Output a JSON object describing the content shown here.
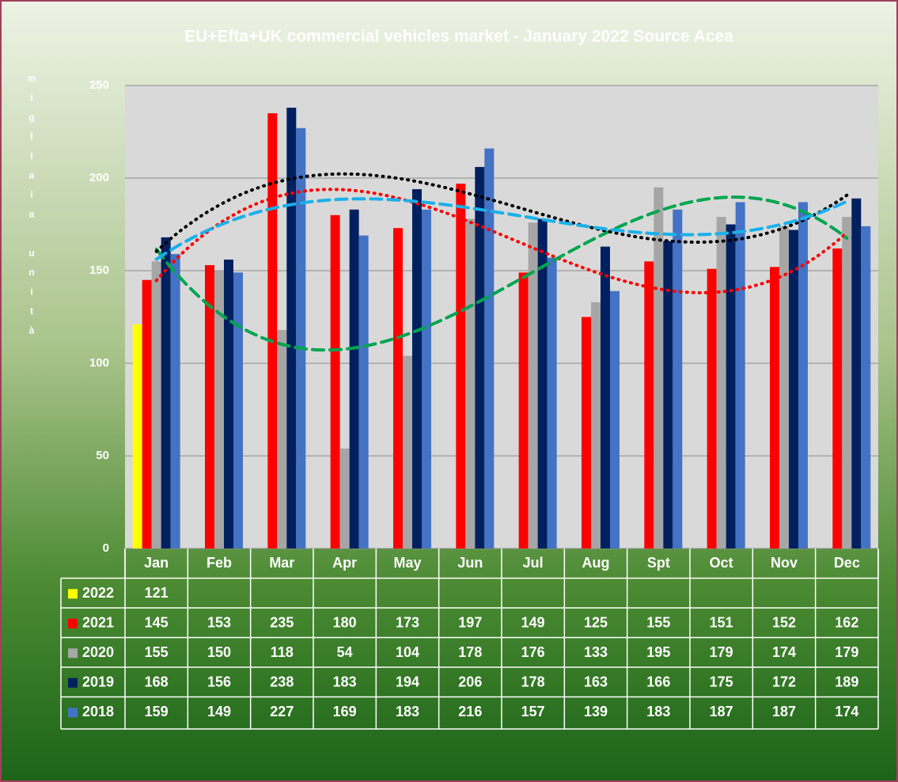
{
  "chart_data": {
    "type": "bar",
    "title": "EU+Efta+UK  commercial vehicles market - January 2022 Source Acea",
    "y_label": "migliaia unità",
    "categories": [
      "Jan",
      "Feb",
      "Mar",
      "Apr",
      "May",
      "Jun",
      "Jul",
      "Aug",
      "Spt",
      "Oct",
      "Nov",
      "Dec"
    ],
    "series": [
      {
        "name": "2022",
        "color": "#ffff00",
        "values": [
          121,
          null,
          null,
          null,
          null,
          null,
          null,
          null,
          null,
          null,
          null,
          null
        ]
      },
      {
        "name": "2021",
        "color": "#ff0000",
        "values": [
          145,
          153,
          235,
          180,
          173,
          197,
          149,
          125,
          155,
          151,
          152,
          162
        ],
        "trendline": {
          "color": "#ff0000",
          "style": "dotted"
        }
      },
      {
        "name": "2020",
        "color": "#a6a6a6",
        "values": [
          155,
          150,
          118,
          54,
          104,
          178,
          176,
          133,
          195,
          179,
          174,
          179
        ],
        "trendline": {
          "color": "#00a550",
          "style": "dashed"
        }
      },
      {
        "name": "2019",
        "color": "#002060",
        "values": [
          168,
          156,
          238,
          183,
          194,
          206,
          178,
          163,
          166,
          175,
          172,
          189
        ],
        "trendline": {
          "color": "#000000",
          "style": "dotted"
        }
      },
      {
        "name": "2018",
        "color": "#4472c4",
        "values": [
          159,
          149,
          227,
          169,
          183,
          216,
          157,
          139,
          183,
          187,
          187,
          174
        ],
        "trendline": {
          "color": "#1ab0ea",
          "style": "dashed"
        }
      }
    ],
    "ylim": [
      0,
      250
    ],
    "yticks": [
      0,
      50,
      100,
      150,
      200,
      250
    ],
    "grid": true,
    "data_table": true
  }
}
